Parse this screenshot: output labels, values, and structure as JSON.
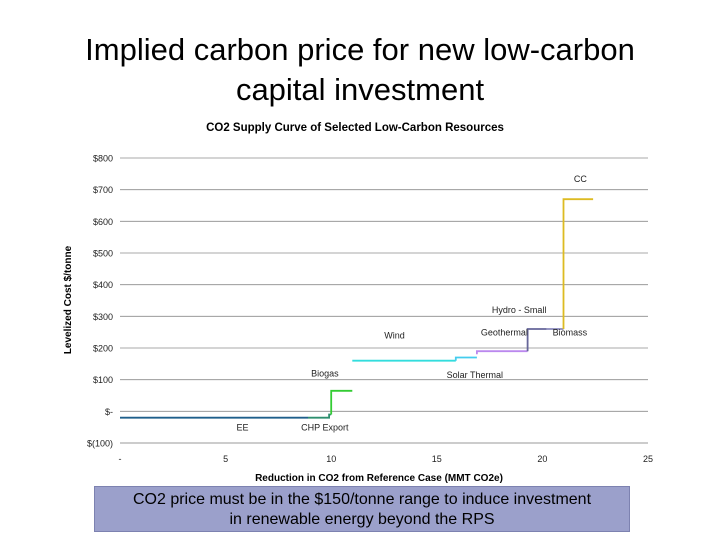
{
  "slide": {
    "title_lines": [
      "Implied carbon price for new low-carbon",
      "capital investment"
    ],
    "callout_lines": [
      "CO2 price must be in the $150/tonne range to induce investment",
      "in renewable energy beyond the RPS"
    ]
  },
  "colors": {
    "callout_bg": "#9ba0cb",
    "gridline": "#8c8c8c",
    "EE": "#1f5f8b",
    "CHP Export": "#2f8f6f",
    "Biogas": "#33cc33",
    "Wind": "#33dddd",
    "Solar Thermal": "#44ccee",
    "Geothermal": "#bb88ee",
    "Hydro - Small": "#666699",
    "Biomass": "#8888bb",
    "CC": "#ddbb22"
  },
  "chart_data": {
    "type": "line",
    "step": true,
    "title": "CO2 Supply Curve of Selected Low-Carbon Resources",
    "xlabel": "Reduction in CO2 from Reference Case (MMT CO2e)",
    "ylabel": "Levelized Cost $/tonne",
    "xlim": [
      0,
      25
    ],
    "ylim": [
      -100,
      800
    ],
    "x_ticks": [
      0,
      5,
      10,
      15,
      20,
      25
    ],
    "x_tick_labels": [
      "-",
      "5",
      "10",
      "15",
      "20",
      "25"
    ],
    "y_ticks": [
      -100,
      0,
      100,
      200,
      300,
      400,
      500,
      600,
      700,
      800
    ],
    "y_tick_labels": [
      "$(100)",
      "$-",
      "$100",
      "$200",
      "$300",
      "$400",
      "$500",
      "$600",
      "$700",
      "$800"
    ],
    "grid": "horizontal",
    "series": [
      {
        "name": "EE",
        "points": [
          [
            0,
            -20
          ],
          [
            1,
            -20
          ],
          [
            1,
            -20
          ],
          [
            8.9,
            -20
          ]
        ],
        "color_key": "EE"
      },
      {
        "name": "CHP Export",
        "points": [
          [
            8.9,
            -20
          ],
          [
            9.9,
            -20
          ],
          [
            9.9,
            -10
          ],
          [
            10,
            -10
          ]
        ],
        "color_key": "CHP Export"
      },
      {
        "name": "Biogas",
        "points": [
          [
            10,
            -10
          ],
          [
            10,
            65
          ],
          [
            11,
            65
          ]
        ],
        "color_key": "Biogas"
      },
      {
        "name": "Wind",
        "points": [
          [
            11,
            160
          ],
          [
            15.9,
            160
          ]
        ],
        "color_key": "Wind"
      },
      {
        "name": "Solar Thermal",
        "points": [
          [
            15.9,
            160
          ],
          [
            15.9,
            170
          ],
          [
            16.9,
            170
          ]
        ],
        "color_key": "Solar Thermal"
      },
      {
        "name": "Geothermal",
        "points": [
          [
            16.9,
            180
          ],
          [
            16.9,
            190
          ],
          [
            19.3,
            190
          ]
        ],
        "color_key": "Geothermal"
      },
      {
        "name": "Hydro - Small",
        "points": [
          [
            19.3,
            190
          ],
          [
            19.3,
            260
          ],
          [
            20.2,
            260
          ]
        ],
        "color_key": "Hydro - Small"
      },
      {
        "name": "Biomass",
        "points": [
          [
            20.2,
            260
          ],
          [
            21,
            260
          ]
        ],
        "color_key": "Biomass"
      },
      {
        "name": "CC",
        "points": [
          [
            21,
            260
          ],
          [
            21,
            670
          ],
          [
            22.4,
            670
          ]
        ],
        "color_key": "CC"
      }
    ],
    "annotations": [
      {
        "text": "EE",
        "x": 5.8,
        "y": -60
      },
      {
        "text": "CHP Export",
        "x": 9.7,
        "y": -60
      },
      {
        "text": "Biogas",
        "x": 9.7,
        "y": 110
      },
      {
        "text": "Wind",
        "x": 13,
        "y": 230
      },
      {
        "text": "Solar Thermal",
        "x": 16.8,
        "y": 105
      },
      {
        "text": "Geothermal",
        "x": 18.2,
        "y": 240
      },
      {
        "text": "Hydro - Small",
        "x": 18.9,
        "y": 310
      },
      {
        "text": "Biomass",
        "x": 21.3,
        "y": 240
      },
      {
        "text": "CC",
        "x": 21.8,
        "y": 725
      }
    ]
  }
}
